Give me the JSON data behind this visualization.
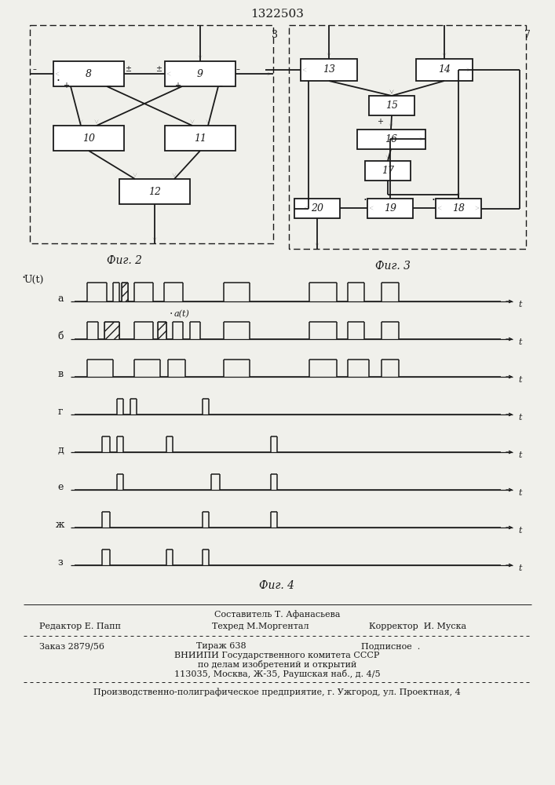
{
  "title": "1322503",
  "fig2_label": "Фиг. 2",
  "fig3_label": "Фиг. 3",
  "fig4_label": "Фиг. 4",
  "footer_line1": "Составитель Т. Афанасьева",
  "footer_left": "Редактор Е. Папп",
  "footer_mid": "Техред М.Моргентал",
  "footer_right": "Корректор  И. Муска",
  "footer_order": "Заказ 2879/56",
  "footer_tirazh": "Тираж 638",
  "footer_podp": "Подписное  .",
  "footer_vnipi": "ВНИИПИ Государственного комитета СССР",
  "footer_po": "по делам изобретений и открытий",
  "footer_addr": "113035, Москва, Ж-35, Раушская наб., д. 4/5",
  "footer_prod": "Производственно-полиграфическое предприятие, г. Ужгород, ул. Проектная, 4",
  "bg_color": "#f0f0eb",
  "lc": "#1a1a1a"
}
